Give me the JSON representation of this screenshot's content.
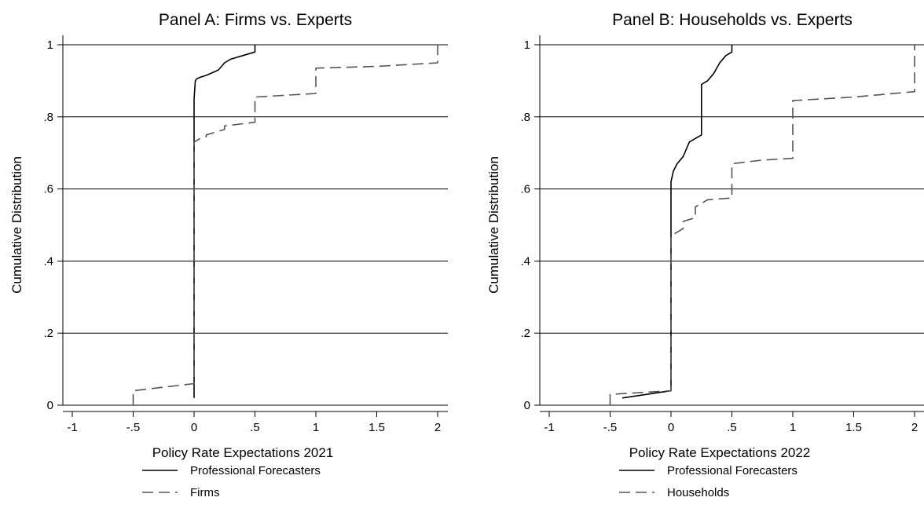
{
  "chart_data": [
    {
      "type": "line",
      "title": "Panel A: Firms vs. Experts",
      "xlabel": "Policy Rate Expectations 2021",
      "ylabel": "Cumulative Distribution",
      "xlim": [
        -1,
        2
      ],
      "ylim": [
        0,
        1
      ],
      "xticks": [
        -1,
        -0.5,
        0,
        0.5,
        1,
        1.5,
        2
      ],
      "xtick_labels": [
        "-1",
        "-.5",
        "0",
        ".5",
        "1",
        "1.5",
        "2"
      ],
      "yticks": [
        0,
        0.2,
        0.4,
        0.6,
        0.8,
        1
      ],
      "ytick_labels": [
        "0",
        ".2",
        ".4",
        ".6",
        ".8",
        "1"
      ],
      "grid": "horizontal",
      "legend_position": "bottom",
      "series": [
        {
          "name": "Professional Forecasters",
          "style": "solid",
          "x": [
            0,
            0,
            0.01,
            0.02,
            0.05,
            0.1,
            0.2,
            0.25,
            0.3,
            0.4,
            0.5,
            0.5
          ],
          "y": [
            0.02,
            0.85,
            0.9,
            0.905,
            0.91,
            0.915,
            0.93,
            0.95,
            0.96,
            0.97,
            0.98,
            1.0
          ]
        },
        {
          "name": "Firms",
          "style": "dashed",
          "x": [
            -0.5,
            -0.5,
            0,
            0,
            0.05,
            0.1,
            0.1,
            0.2,
            0.25,
            0.25,
            0.5,
            0.5,
            0.75,
            1,
            1,
            1.5,
            2,
            2
          ],
          "y": [
            0.0,
            0.04,
            0.06,
            0.73,
            0.74,
            0.745,
            0.75,
            0.76,
            0.765,
            0.775,
            0.785,
            0.855,
            0.86,
            0.865,
            0.935,
            0.94,
            0.95,
            1.0
          ]
        }
      ]
    },
    {
      "type": "line",
      "title": "Panel B: Households vs. Experts",
      "xlabel": "Policy Rate Expectations 2022",
      "ylabel": "Cumulative Distribution",
      "xlim": [
        -1,
        2
      ],
      "ylim": [
        0,
        1
      ],
      "xticks": [
        -1,
        -0.5,
        0,
        0.5,
        1,
        1.5,
        2
      ],
      "xtick_labels": [
        "-1",
        "-.5",
        "0",
        ".5",
        "1",
        "1.5",
        "2"
      ],
      "yticks": [
        0,
        0.2,
        0.4,
        0.6,
        0.8,
        1
      ],
      "ytick_labels": [
        "0",
        ".2",
        ".4",
        ".6",
        ".8",
        "1"
      ],
      "grid": "horizontal",
      "legend_position": "bottom",
      "series": [
        {
          "name": "Professional Forecasters",
          "style": "solid",
          "x": [
            -0.4,
            -0.2,
            0,
            0,
            0.02,
            0.05,
            0.1,
            0.15,
            0.2,
            0.25,
            0.25,
            0.3,
            0.35,
            0.4,
            0.45,
            0.5,
            0.5
          ],
          "y": [
            0.02,
            0.03,
            0.04,
            0.62,
            0.65,
            0.67,
            0.69,
            0.73,
            0.74,
            0.75,
            0.89,
            0.9,
            0.92,
            0.95,
            0.97,
            0.98,
            1.0
          ]
        },
        {
          "name": "Households",
          "style": "dashed",
          "x": [
            -0.5,
            -0.5,
            0,
            0,
            0.05,
            0.1,
            0.1,
            0.2,
            0.2,
            0.25,
            0.3,
            0.5,
            0.5,
            0.75,
            1,
            1,
            1.5,
            2,
            2
          ],
          "y": [
            0.0,
            0.03,
            0.04,
            0.47,
            0.48,
            0.49,
            0.51,
            0.52,
            0.55,
            0.56,
            0.57,
            0.575,
            0.67,
            0.68,
            0.685,
            0.845,
            0.855,
            0.87,
            1.0
          ]
        }
      ]
    }
  ]
}
